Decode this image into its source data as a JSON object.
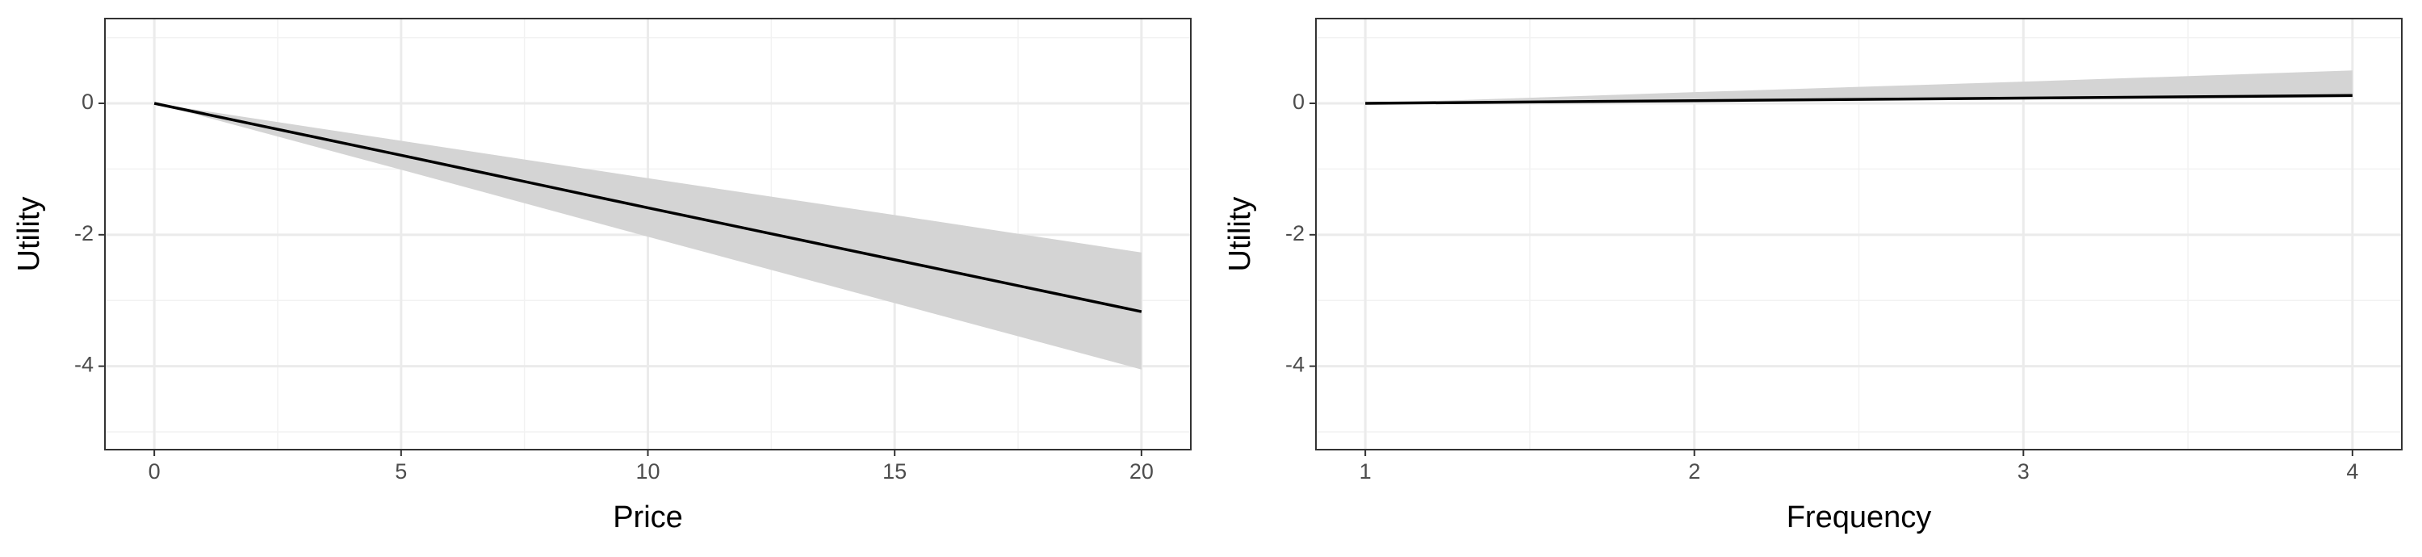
{
  "chart_data": [
    {
      "type": "line",
      "x_label": "Price",
      "y_label": "Utility",
      "x": [
        0,
        5,
        10,
        15,
        20
      ],
      "values": [
        0,
        -0.79,
        -1.59,
        -2.38,
        -3.17
      ],
      "upper": [
        0,
        -0.57,
        -1.14,
        -1.7,
        -2.27
      ],
      "lower": [
        0,
        -1.01,
        -2.03,
        -3.04,
        -4.05
      ],
      "color": "#000000",
      "band_color": "#d4d4d4",
      "xlim": [
        -1,
        21
      ],
      "xticks": [
        0,
        5,
        10,
        15,
        20
      ],
      "ylim": [
        -5.27,
        1.29
      ],
      "yticks": [
        -4,
        -2,
        0
      ],
      "grid": true
    },
    {
      "type": "line",
      "x_label": "Frequency",
      "y_label": "Utility",
      "x": [
        1,
        2,
        3,
        4
      ],
      "values": [
        0,
        0.04,
        0.08,
        0.12
      ],
      "upper": [
        0,
        0.17,
        0.33,
        0.5
      ],
      "lower": [
        0,
        0.03,
        0.06,
        0.09
      ],
      "color": "#000000",
      "band_color": "#d4d4d4",
      "xlim": [
        0.85,
        4.15
      ],
      "xticks": [
        1,
        2,
        3,
        4
      ],
      "ylim": [
        -5.27,
        1.29
      ],
      "yticks": [
        -4,
        -2,
        0
      ],
      "grid": true
    }
  ]
}
